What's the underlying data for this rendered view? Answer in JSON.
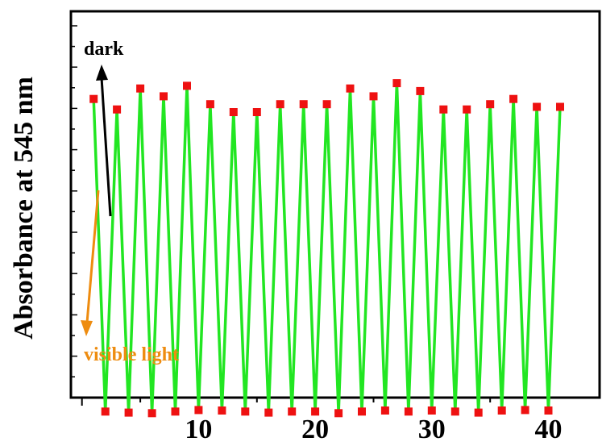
{
  "chart_data": {
    "type": "line",
    "title": "",
    "xlabel": "",
    "ylabel": "Absorbance at 545 nm",
    "xlim": [
      0,
      43
    ],
    "ylim": [
      0,
      1
    ],
    "xticks": [
      10,
      20,
      30,
      40
    ],
    "xtick_labels": [
      "10",
      "20",
      "30",
      "40"
    ],
    "yticks_labels_shown": false,
    "grid": false,
    "line_color": "#22e622",
    "marker_color": "#ee1111",
    "marker": "square",
    "series": [
      {
        "x": [
          1,
          2,
          3,
          4,
          5,
          6,
          7,
          8,
          9,
          10,
          11,
          12,
          13,
          14,
          15,
          16,
          17,
          18,
          19,
          20,
          21,
          22,
          23,
          24,
          25,
          26,
          27,
          28,
          29,
          30,
          31,
          32,
          33,
          34,
          35,
          36,
          37,
          38,
          39,
          40,
          41
        ],
        "y": [
          0.81,
          0.215,
          0.79,
          0.213,
          0.83,
          0.212,
          0.815,
          0.215,
          0.835,
          0.218,
          0.8,
          0.217,
          0.785,
          0.215,
          0.785,
          0.213,
          0.8,
          0.215,
          0.8,
          0.215,
          0.8,
          0.212,
          0.83,
          0.215,
          0.815,
          0.217,
          0.84,
          0.215,
          0.825,
          0.217,
          0.79,
          0.215,
          0.79,
          0.213,
          0.8,
          0.217,
          0.81,
          0.218,
          0.795,
          0.217,
          0.795
        ]
      }
    ],
    "annotations": [
      {
        "text": "dark",
        "color": "#000000",
        "arrow": "up"
      },
      {
        "text": "visible light",
        "color": "#ee8c10",
        "arrow": "down"
      }
    ]
  }
}
